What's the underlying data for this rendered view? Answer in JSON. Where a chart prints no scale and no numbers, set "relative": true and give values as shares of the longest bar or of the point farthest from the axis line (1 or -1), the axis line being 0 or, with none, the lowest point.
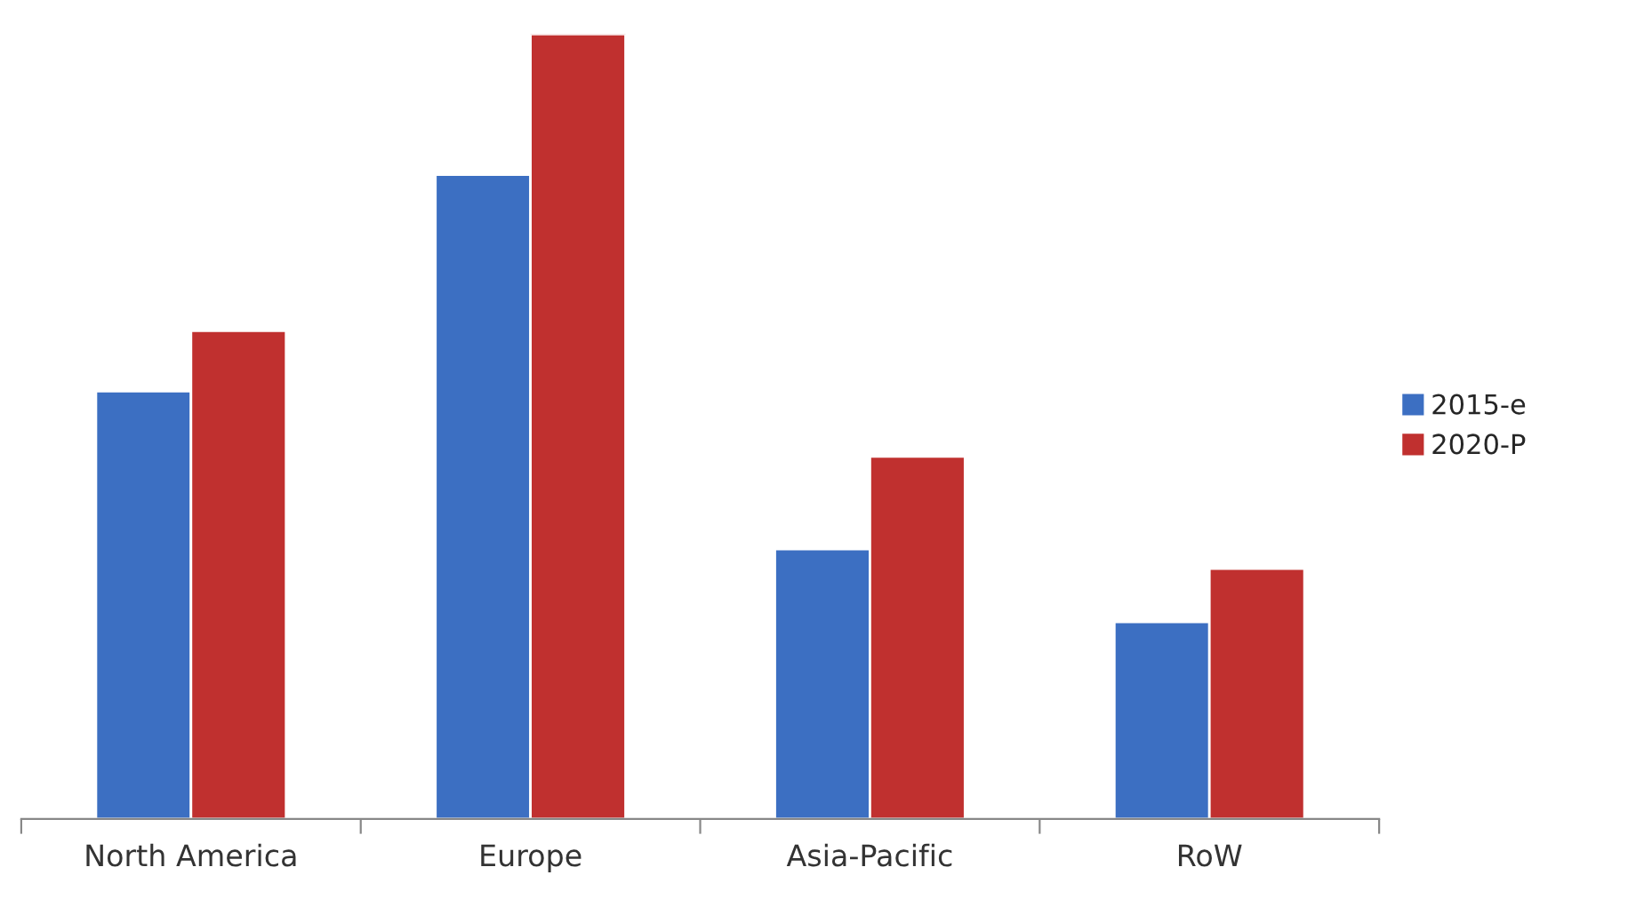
{
  "chart_data": {
    "type": "bar",
    "relative": true,
    "categories": [
      "North America",
      "Europe",
      "Asia-Pacific",
      "RoW"
    ],
    "series": [
      {
        "name": "2015-e",
        "color": "#3c6fc2",
        "values": [
          0.545,
          0.821,
          0.344,
          0.251
        ]
      },
      {
        "name": "2020-P",
        "color": "#c0302f",
        "values": [
          0.622,
          1,
          0.462,
          0.319
        ]
      }
    ],
    "legend": "right",
    "grid": false
  }
}
